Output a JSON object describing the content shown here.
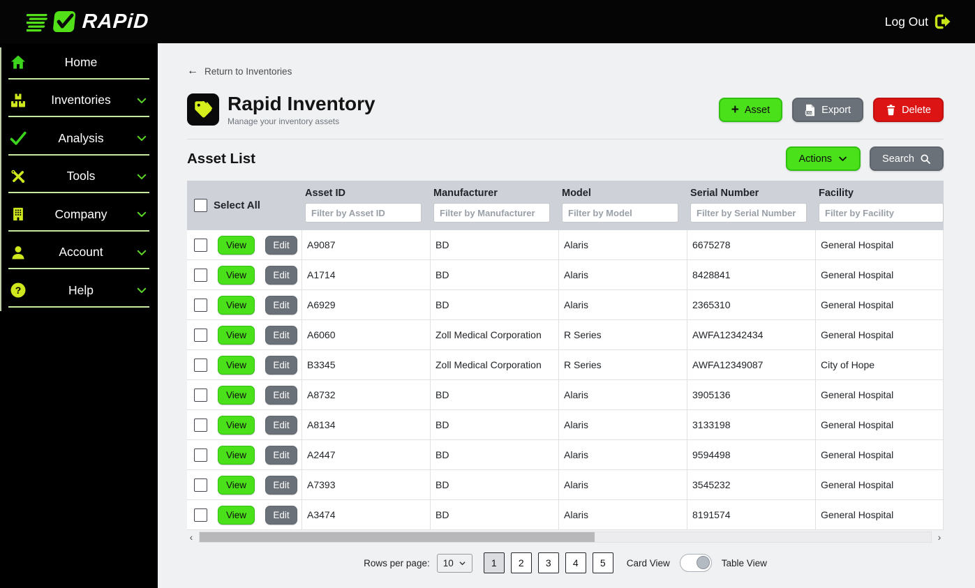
{
  "topbar": {
    "brand": "RAPiD",
    "logout_label": "Log Out"
  },
  "sidebar": {
    "items": [
      {
        "label": "Home",
        "icon": "home-icon",
        "chevron": false
      },
      {
        "label": "Inventories",
        "icon": "boxes-icon",
        "chevron": true
      },
      {
        "label": "Analysis",
        "icon": "checkmark-icon",
        "chevron": true
      },
      {
        "label": "Tools",
        "icon": "tools-icon",
        "chevron": true
      },
      {
        "label": "Company",
        "icon": "building-icon",
        "chevron": true
      },
      {
        "label": "Account",
        "icon": "person-icon",
        "chevron": true
      },
      {
        "label": "Help",
        "icon": "help-icon",
        "chevron": true
      }
    ]
  },
  "page": {
    "back_link": "Return to Inventories",
    "title": "Rapid Inventory",
    "subtitle": "Manage your inventory assets",
    "add_button": "Asset",
    "export_button": "Export",
    "delete_button": "Delete",
    "section_title": "Asset List",
    "actions_button": "Actions",
    "search_button": "Search"
  },
  "table": {
    "select_all_label": "Select All",
    "view_button": "View",
    "edit_button": "Edit",
    "columns": [
      {
        "label": "Asset ID",
        "placeholder": "Filter by Asset ID"
      },
      {
        "label": "Manufacturer",
        "placeholder": "Filter by Manufacturer"
      },
      {
        "label": "Model",
        "placeholder": "Filter by Model"
      },
      {
        "label": "Serial Number",
        "placeholder": "Filter by Serial Number"
      },
      {
        "label": "Facility",
        "placeholder": "Filter by Facility"
      }
    ],
    "rows": [
      {
        "asset_id": "A9087",
        "manufacturer": "BD",
        "model": "Alaris",
        "serial_number": "6675278",
        "facility": "General Hospital"
      },
      {
        "asset_id": "A1714",
        "manufacturer": "BD",
        "model": "Alaris",
        "serial_number": "8428841",
        "facility": "General Hospital"
      },
      {
        "asset_id": "A6929",
        "manufacturer": "BD",
        "model": "Alaris",
        "serial_number": "2365310",
        "facility": "General Hospital"
      },
      {
        "asset_id": "A6060",
        "manufacturer": "Zoll Medical Corporation",
        "model": "R Series",
        "serial_number": "AWFA12342434",
        "facility": "General Hospital"
      },
      {
        "asset_id": "B3345",
        "manufacturer": "Zoll Medical Corporation",
        "model": "R Series",
        "serial_number": "AWFA12349087",
        "facility": "City of Hope"
      },
      {
        "asset_id": "A8732",
        "manufacturer": "BD",
        "model": "Alaris",
        "serial_number": "3905136",
        "facility": "General Hospital"
      },
      {
        "asset_id": "A8134",
        "manufacturer": "BD",
        "model": "Alaris",
        "serial_number": "3133198",
        "facility": "General Hospital"
      },
      {
        "asset_id": "A2447",
        "manufacturer": "BD",
        "model": "Alaris",
        "serial_number": "9594498",
        "facility": "General Hospital"
      },
      {
        "asset_id": "A7393",
        "manufacturer": "BD",
        "model": "Alaris",
        "serial_number": "3545232",
        "facility": "General Hospital"
      },
      {
        "asset_id": "A3474",
        "manufacturer": "BD",
        "model": "Alaris",
        "serial_number": "8191574",
        "facility": "General Hospital"
      }
    ]
  },
  "pagination": {
    "rows_per_page_label": "Rows per page:",
    "rows_per_page_value": "10",
    "pages": [
      "1",
      "2",
      "3",
      "4",
      "5"
    ],
    "active_page": "1",
    "card_view_label": "Card View",
    "table_view_label": "Table View"
  },
  "colors": {
    "accent_green": "#4ae01a",
    "button_gray": "#6a7179",
    "delete_red": "#dc1414",
    "sidebar_icon_green": "#3cd41c",
    "sidebar_icon_yellowgreen": "#cfe71d",
    "table_header_bg": "#ced1d8"
  }
}
